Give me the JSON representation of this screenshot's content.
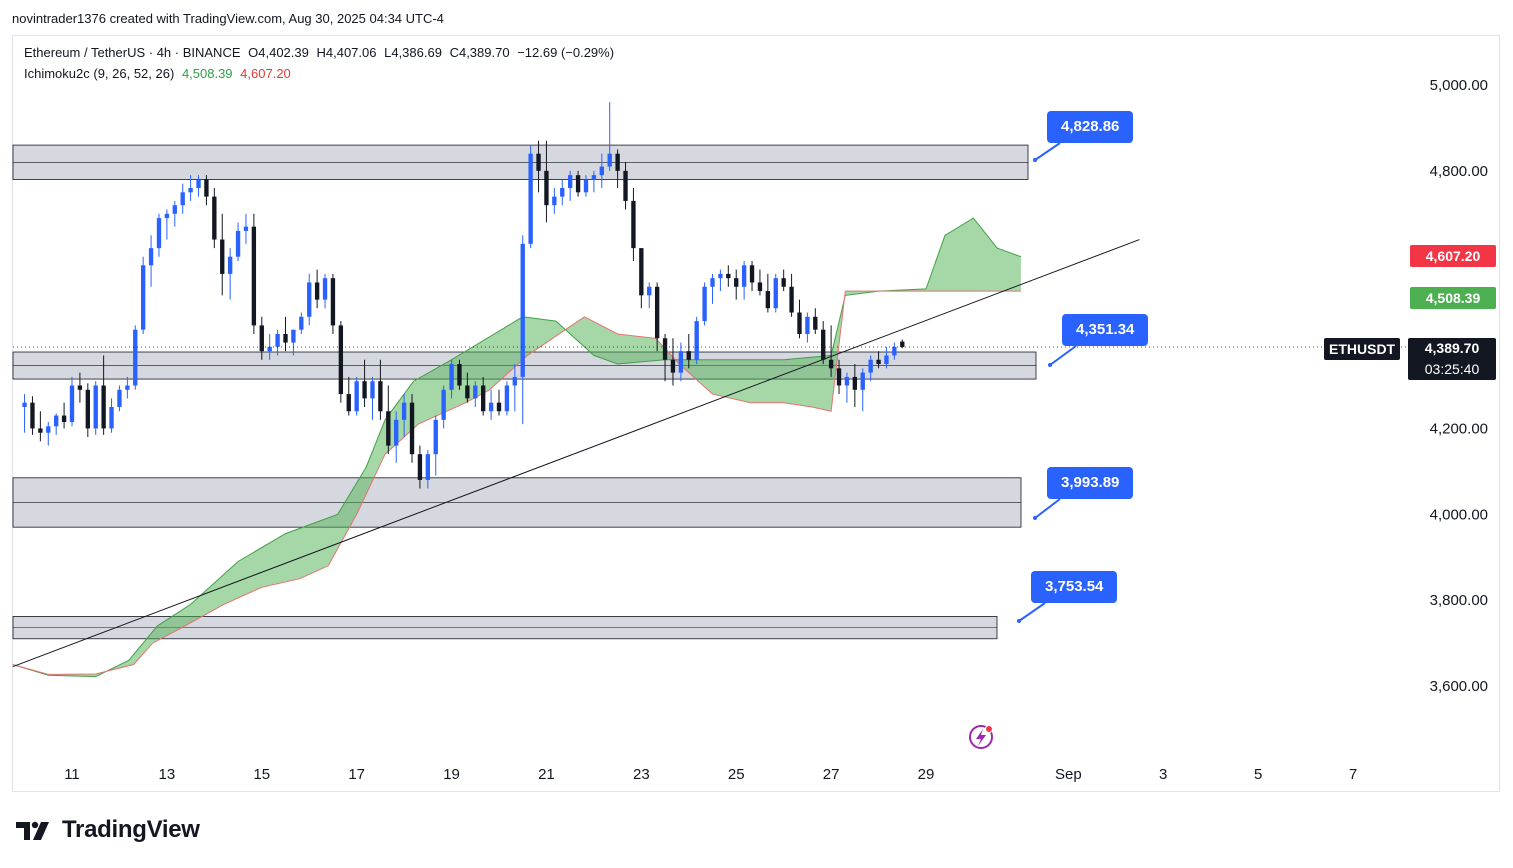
{
  "header": {
    "caption": "novintrader1376 created with TradingView.com, Aug 30, 2025 04:34 UTC-4"
  },
  "legend": {
    "symbol": "Ethereum / TetherUS · 4h · BINANCE",
    "open": "O4,402.39",
    "high": "H4,407.06",
    "low": "L4,386.69",
    "close": "C4,389.70",
    "change": "−12.69 (−0.29%)",
    "indicator": "Ichimoku2c (9, 26, 52, 26)",
    "ind_value_a": "4,508.39",
    "ind_value_b": "4,607.20"
  },
  "price_scale": {
    "ticker": "ETHUSDT",
    "last_price": "4,389.70",
    "countdown": "03:25:40",
    "tag_red": "4,607.20",
    "tag_green": "4,508.39"
  },
  "callouts": [
    "4,828.86",
    "4,351.34",
    "3,993.89",
    "3,753.54"
  ],
  "footer": {
    "brand": "TradingView"
  },
  "colors": {
    "up": "#2962ff",
    "down": "#131722",
    "cloud": "#4caf50",
    "cloud_edge": "#e57373",
    "zone": "#d1d4dc",
    "callout": "#2962ff",
    "tag_red": "#f23645",
    "tag_green": "#4caf50"
  },
  "chart_data": {
    "type": "candlestick",
    "title": "Ethereum / TetherUS · 4h · BINANCE",
    "y_ticks": [
      "5,000.00",
      "4,800.00",
      "4,200.00",
      "4,000.00",
      "3,800.00",
      "3,600.00"
    ],
    "y_tick_values": [
      5000,
      4800,
      4200,
      4000,
      3800,
      3600
    ],
    "x_ticks": [
      "11",
      "13",
      "15",
      "17",
      "19",
      "21",
      "23",
      "25",
      "27",
      "29",
      "Sep",
      "3",
      "5",
      "7"
    ],
    "x_tick_days": [
      11,
      13,
      15,
      17,
      19,
      21,
      23,
      25,
      27,
      29,
      32,
      34,
      36,
      38
    ],
    "ylim": [
      3450,
      5140
    ],
    "xlim_days": [
      9.75,
      41.5
    ],
    "zones": [
      {
        "low": 4780,
        "high": 4860
      },
      {
        "low": 4315,
        "high": 4378
      },
      {
        "low": 3970,
        "high": 4085
      },
      {
        "low": 3710,
        "high": 3762
      }
    ],
    "trendline": [
      {
        "day": 9.75,
        "price": 3645
      },
      {
        "day": 33.5,
        "price": 4640
      }
    ],
    "ichimoku": {
      "span_a": [
        [
          9.75,
          3650
        ],
        [
          10.5,
          3625
        ],
        [
          11.5,
          3622
        ],
        [
          12.2,
          3660
        ],
        [
          12.8,
          3740
        ],
        [
          13.5,
          3790
        ],
        [
          14.5,
          3890
        ],
        [
          15.5,
          3955
        ],
        [
          16.6,
          4000
        ],
        [
          17.2,
          4110
        ],
        [
          17.6,
          4220
        ],
        [
          18.2,
          4310
        ],
        [
          19.0,
          4360
        ],
        [
          20.5,
          4460
        ],
        [
          21.2,
          4450
        ],
        [
          22.0,
          4370
        ],
        [
          22.5,
          4350
        ],
        [
          23.5,
          4360
        ],
        [
          24.5,
          4360
        ],
        [
          26.0,
          4360
        ],
        [
          27.0,
          4370
        ],
        [
          27.3,
          4510
        ],
        [
          28.0,
          4520
        ],
        [
          29.0,
          4525
        ],
        [
          29.4,
          4650
        ],
        [
          30.0,
          4690
        ],
        [
          30.5,
          4620
        ],
        [
          31.0,
          4600
        ]
      ],
      "span_b": [
        [
          9.75,
          3650
        ],
        [
          10.5,
          3627
        ],
        [
          11.5,
          3628
        ],
        [
          12.3,
          3650
        ],
        [
          12.7,
          3700
        ],
        [
          13.3,
          3735
        ],
        [
          14.2,
          3790
        ],
        [
          15.0,
          3830
        ],
        [
          15.8,
          3850
        ],
        [
          16.4,
          3880
        ],
        [
          17.0,
          4000
        ],
        [
          17.6,
          4140
        ],
        [
          18.3,
          4210
        ],
        [
          19.3,
          4260
        ],
        [
          19.8,
          4290
        ],
        [
          20.6,
          4370
        ],
        [
          21.8,
          4460
        ],
        [
          22.5,
          4420
        ],
        [
          23.3,
          4410
        ],
        [
          23.8,
          4350
        ],
        [
          24.5,
          4280
        ],
        [
          25.3,
          4260
        ],
        [
          26.0,
          4260
        ],
        [
          26.6,
          4250
        ],
        [
          27.0,
          4240
        ],
        [
          27.3,
          4520
        ],
        [
          29.0,
          4520
        ],
        [
          31.0,
          4520
        ]
      ]
    },
    "series": [
      {
        "name": "ETHUSDT",
        "ohlc": [
          [
            4250,
            4280,
            4190,
            4260
          ],
          [
            4260,
            4275,
            4185,
            4200
          ],
          [
            4200,
            4240,
            4170,
            4190
          ],
          [
            4190,
            4215,
            4160,
            4205
          ],
          [
            4205,
            4235,
            4185,
            4230
          ],
          [
            4230,
            4260,
            4200,
            4215
          ],
          [
            4215,
            4320,
            4205,
            4300
          ],
          [
            4300,
            4330,
            4260,
            4290
          ],
          [
            4290,
            4305,
            4180,
            4200
          ],
          [
            4200,
            4310,
            4185,
            4300
          ],
          [
            4300,
            4370,
            4185,
            4200
          ],
          [
            4200,
            4270,
            4190,
            4250
          ],
          [
            4250,
            4300,
            4240,
            4290
          ],
          [
            4290,
            4320,
            4270,
            4300
          ],
          [
            4300,
            4440,
            4290,
            4430
          ],
          [
            4430,
            4600,
            4420,
            4580
          ],
          [
            4580,
            4650,
            4530,
            4620
          ],
          [
            4620,
            4700,
            4600,
            4690
          ],
          [
            4690,
            4710,
            4640,
            4700
          ],
          [
            4700,
            4730,
            4670,
            4720
          ],
          [
            4720,
            4770,
            4700,
            4750
          ],
          [
            4750,
            4790,
            4730,
            4760
          ],
          [
            4760,
            4790,
            4740,
            4780
          ],
          [
            4780,
            4790,
            4720,
            4740
          ],
          [
            4740,
            4760,
            4620,
            4640
          ],
          [
            4640,
            4700,
            4510,
            4560
          ],
          [
            4560,
            4620,
            4500,
            4600
          ],
          [
            4600,
            4680,
            4590,
            4660
          ],
          [
            4660,
            4700,
            4630,
            4670
          ],
          [
            4670,
            4700,
            4420,
            4440
          ],
          [
            4440,
            4460,
            4360,
            4380
          ],
          [
            4380,
            4420,
            4360,
            4390
          ],
          [
            4390,
            4430,
            4370,
            4420
          ],
          [
            4420,
            4460,
            4380,
            4400
          ],
          [
            4400,
            4430,
            4370,
            4430
          ],
          [
            4430,
            4470,
            4420,
            4460
          ],
          [
            4460,
            4560,
            4440,
            4540
          ],
          [
            4540,
            4570,
            4480,
            4500
          ],
          [
            4500,
            4560,
            4480,
            4550
          ],
          [
            4550,
            4560,
            4420,
            4440
          ],
          [
            4440,
            4450,
            4260,
            4280
          ],
          [
            4280,
            4320,
            4230,
            4240
          ],
          [
            4240,
            4320,
            4230,
            4310
          ],
          [
            4310,
            4360,
            4250,
            4270
          ],
          [
            4270,
            4320,
            4220,
            4310
          ],
          [
            4310,
            4360,
            4220,
            4240
          ],
          [
            4240,
            4300,
            4140,
            4160
          ],
          [
            4160,
            4240,
            4120,
            4220
          ],
          [
            4220,
            4280,
            4180,
            4260
          ],
          [
            4260,
            4280,
            4120,
            4140
          ],
          [
            4140,
            4160,
            4060,
            4080
          ],
          [
            4080,
            4150,
            4060,
            4140
          ],
          [
            4140,
            4230,
            4090,
            4220
          ],
          [
            4220,
            4300,
            4200,
            4290
          ],
          [
            4290,
            4360,
            4270,
            4350
          ],
          [
            4350,
            4360,
            4290,
            4300
          ],
          [
            4300,
            4330,
            4260,
            4270
          ],
          [
            4270,
            4310,
            4250,
            4300
          ],
          [
            4300,
            4320,
            4230,
            4240
          ],
          [
            4240,
            4290,
            4220,
            4260
          ],
          [
            4260,
            4290,
            4230,
            4240
          ],
          [
            4240,
            4310,
            4230,
            4300
          ],
          [
            4300,
            4350,
            4240,
            4320
          ],
          [
            4320,
            4650,
            4210,
            4630
          ],
          [
            4630,
            4860,
            4620,
            4840
          ],
          [
            4840,
            4870,
            4750,
            4800
          ],
          [
            4800,
            4870,
            4680,
            4720
          ],
          [
            4720,
            4760,
            4700,
            4740
          ],
          [
            4740,
            4780,
            4720,
            4760
          ],
          [
            4760,
            4800,
            4730,
            4790
          ],
          [
            4790,
            4800,
            4740,
            4750
          ],
          [
            4750,
            4790,
            4740,
            4780
          ],
          [
            4780,
            4800,
            4750,
            4790
          ],
          [
            4790,
            4840,
            4760,
            4810
          ],
          [
            4810,
            4960,
            4800,
            4840
          ],
          [
            4840,
            4850,
            4760,
            4800
          ],
          [
            4800,
            4820,
            4710,
            4730
          ],
          [
            4730,
            4760,
            4590,
            4620
          ],
          [
            4620,
            4620,
            4480,
            4510
          ],
          [
            4510,
            4540,
            4480,
            4530
          ],
          [
            4530,
            4540,
            4380,
            4410
          ],
          [
            4410,
            4420,
            4310,
            4360
          ],
          [
            4360,
            4410,
            4300,
            4330
          ],
          [
            4330,
            4400,
            4310,
            4380
          ],
          [
            4380,
            4420,
            4340,
            4360
          ],
          [
            4360,
            4460,
            4350,
            4450
          ],
          [
            4450,
            4540,
            4440,
            4530
          ],
          [
            4530,
            4560,
            4490,
            4550
          ],
          [
            4550,
            4570,
            4520,
            4560
          ],
          [
            4560,
            4580,
            4530,
            4550
          ],
          [
            4550,
            4570,
            4500,
            4530
          ],
          [
            4530,
            4590,
            4500,
            4580
          ],
          [
            4580,
            4590,
            4520,
            4540
          ],
          [
            4540,
            4570,
            4510,
            4520
          ],
          [
            4520,
            4560,
            4470,
            4480
          ],
          [
            4480,
            4560,
            4470,
            4550
          ],
          [
            4550,
            4570,
            4520,
            4530
          ],
          [
            4530,
            4560,
            4460,
            4470
          ],
          [
            4470,
            4500,
            4410,
            4420
          ],
          [
            4420,
            4470,
            4400,
            4460
          ],
          [
            4460,
            4480,
            4420,
            4430
          ],
          [
            4430,
            4450,
            4350,
            4360
          ],
          [
            4360,
            4440,
            4320,
            4340
          ],
          [
            4340,
            4360,
            4280,
            4300
          ],
          [
            4300,
            4330,
            4260,
            4320
          ],
          [
            4320,
            4350,
            4250,
            4290
          ],
          [
            4290,
            4340,
            4240,
            4330
          ],
          [
            4330,
            4370,
            4310,
            4360
          ],
          [
            4360,
            4380,
            4340,
            4350
          ],
          [
            4350,
            4390,
            4340,
            4370
          ],
          [
            4370,
            4400,
            4360,
            4390
          ],
          [
            4402.39,
            4407.06,
            4386.69,
            4389.7
          ]
        ]
      }
    ],
    "candle_start_day": 10.0,
    "candles_per_day": 6,
    "grid": false
  }
}
